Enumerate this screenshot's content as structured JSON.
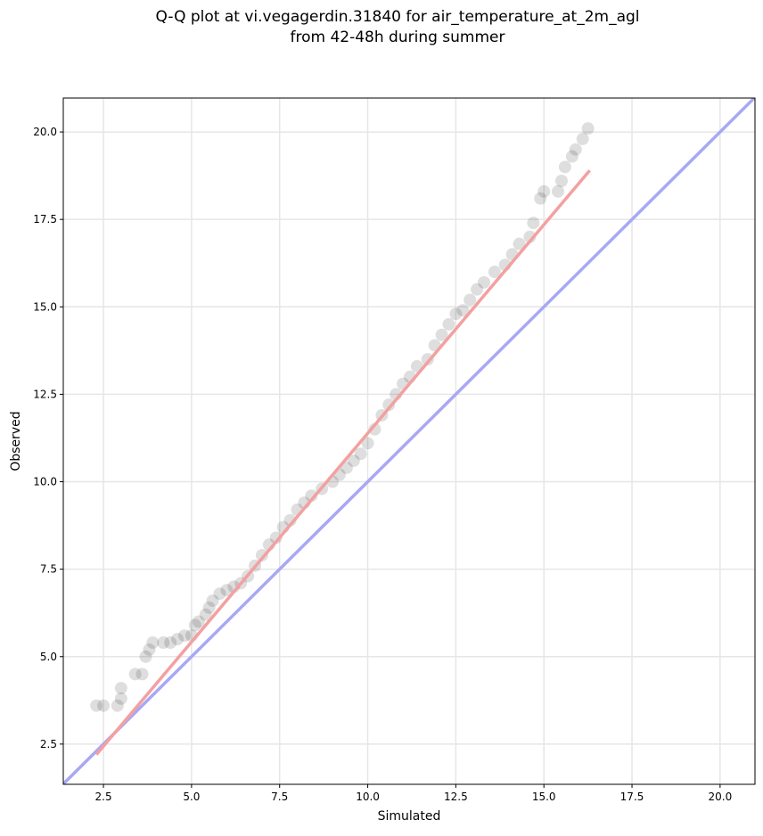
{
  "chart_data": {
    "type": "scatter",
    "title": [
      "Q-Q plot at vi.vegagerdin.31840 for air_temperature_at_2m_agl",
      "from 42-48h during summer"
    ],
    "xlabel": "Simulated",
    "ylabel": "Observed",
    "xlim": [
      1.36,
      20.99
    ],
    "ylim": [
      1.35,
      20.97
    ],
    "xticks": [
      2.5,
      {
        "value": 5,
        "label": "5.0"
      },
      7.5,
      {
        "value": 10,
        "label": "10.0"
      },
      12.5,
      {
        "value": 15,
        "label": "15.0"
      },
      17.5,
      {
        "value": 20,
        "label": "20.0"
      }
    ],
    "yticks": [
      2.5,
      {
        "value": 5,
        "label": "5.0"
      },
      7.5,
      {
        "value": 10,
        "label": "10.0"
      },
      12.5,
      {
        "value": 15,
        "label": "15.0"
      },
      17.5,
      {
        "value": 20,
        "label": "20.0"
      }
    ],
    "grid": true,
    "series": [
      {
        "color": "#000000",
        "x": [
          2.3,
          2.5,
          2.9,
          3.0,
          3.0,
          3.4,
          3.6,
          3.7,
          3.8,
          3.9,
          4.2,
          4.4,
          4.6,
          4.8,
          5.0,
          5.1,
          5.2,
          5.4,
          5.5,
          5.6,
          5.8,
          6.0,
          6.2,
          6.4,
          6.6,
          6.8,
          7.0,
          7.2,
          7.4,
          7.6,
          7.8,
          8.0,
          8.2,
          8.4,
          8.7,
          9.0,
          9.2,
          9.4,
          9.6,
          9.8,
          10.0,
          10.2,
          10.4,
          10.6,
          10.8,
          11.0,
          11.2,
          11.4,
          11.7,
          11.9,
          12.1,
          12.3,
          12.5,
          12.7,
          12.9,
          13.1,
          13.3,
          13.6,
          13.9,
          14.1,
          14.3,
          14.6,
          14.7,
          14.9,
          15.0,
          15.4,
          15.5,
          15.6,
          15.8,
          15.9,
          16.1,
          16.25
        ],
        "y": [
          3.6,
          3.6,
          3.6,
          3.8,
          4.1,
          4.5,
          4.5,
          5.0,
          5.2,
          5.4,
          5.4,
          5.4,
          5.5,
          5.6,
          5.6,
          5.9,
          6.0,
          6.2,
          6.4,
          6.6,
          6.8,
          6.9,
          7.0,
          7.1,
          7.3,
          7.6,
          7.9,
          8.2,
          8.4,
          8.7,
          8.9,
          9.2,
          9.4,
          9.6,
          9.8,
          10.0,
          10.2,
          10.4,
          10.6,
          10.8,
          11.1,
          11.5,
          11.9,
          12.2,
          12.5,
          12.8,
          13.0,
          13.3,
          13.5,
          13.9,
          14.2,
          14.5,
          14.8,
          14.9,
          15.2,
          15.5,
          15.7,
          16.0,
          16.2,
          16.5,
          16.8,
          17.0,
          17.4,
          18.1,
          18.3,
          18.3,
          18.6,
          19.0,
          19.3,
          19.5,
          19.8,
          20.1
        ]
      }
    ],
    "fit_line": {
      "color": "#f4a0a0",
      "x": [
        2.3,
        16.3
      ],
      "y": [
        2.2,
        18.9
      ]
    },
    "identity_line": {
      "color": "#a8a8f4"
    }
  }
}
